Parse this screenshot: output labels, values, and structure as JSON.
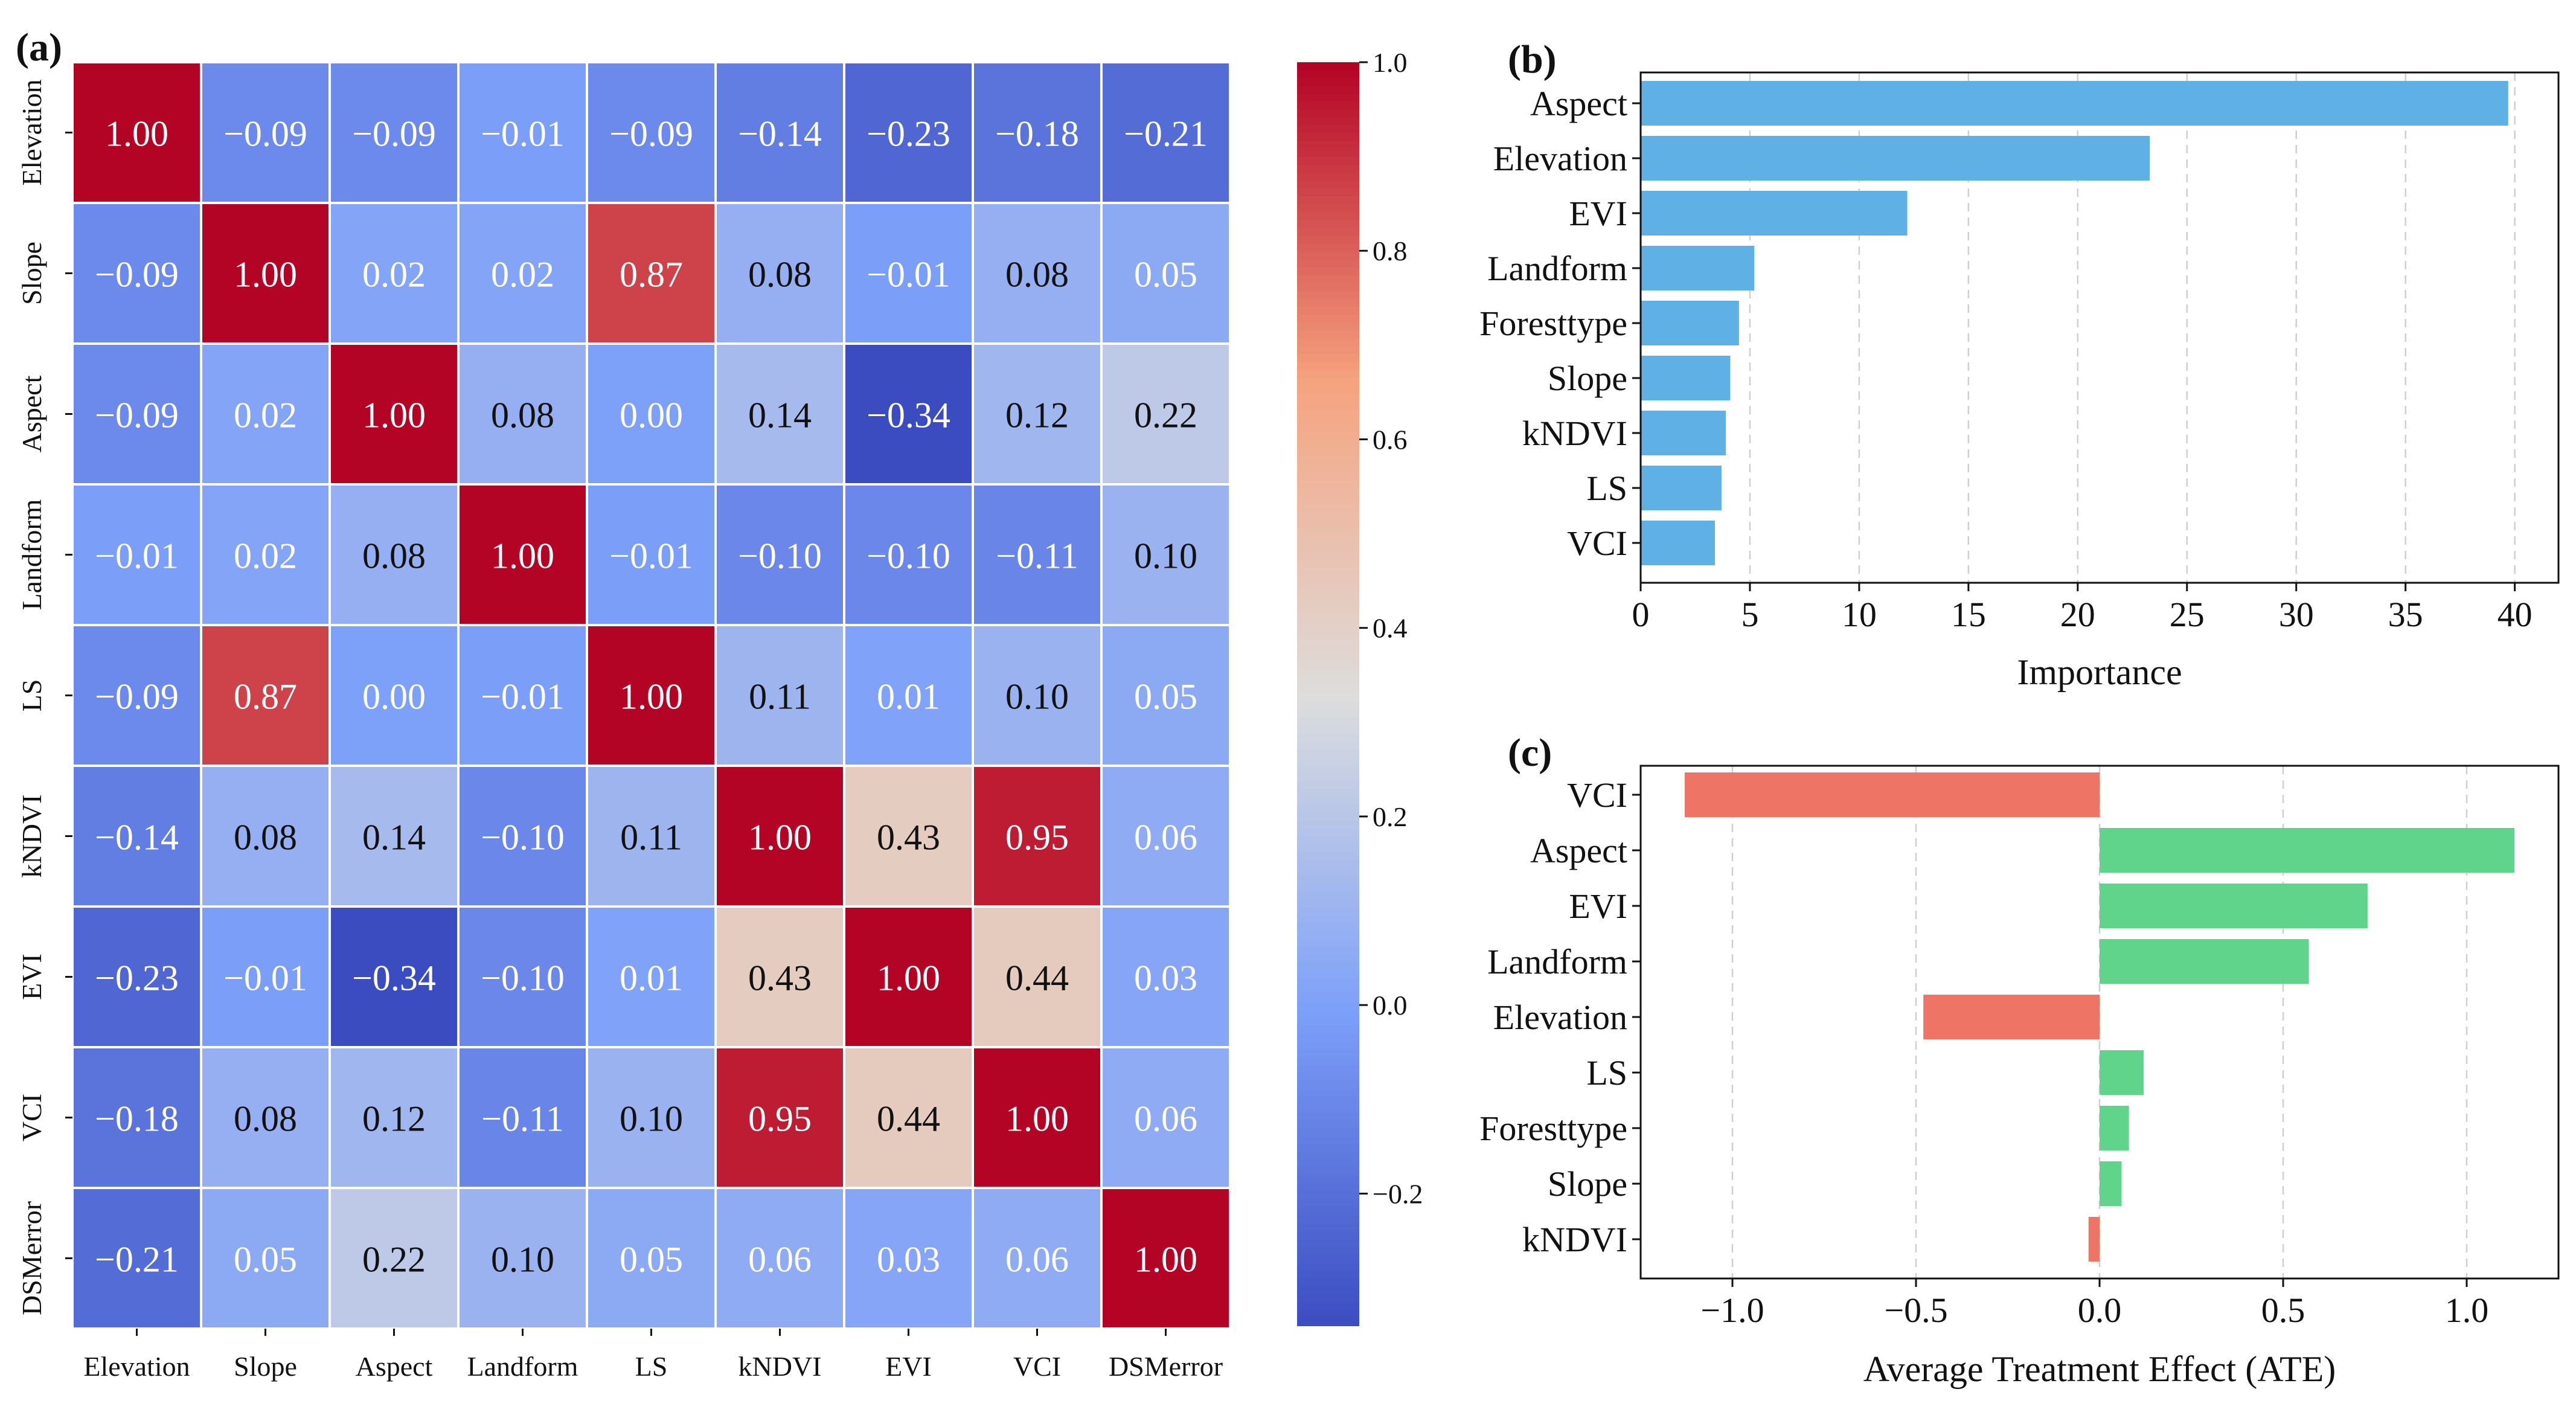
{
  "chart_data": [
    {
      "panel": "(a)",
      "type": "heatmap",
      "title": "",
      "variables": [
        "Elevation",
        "Slope",
        "Aspect",
        "Landform",
        "LS",
        "kNDVI",
        "EVI",
        "VCI",
        "DSMerror"
      ],
      "values": [
        [
          1.0,
          -0.09,
          -0.09,
          -0.01,
          -0.09,
          -0.14,
          -0.23,
          -0.18,
          -0.21
        ],
        [
          -0.09,
          1.0,
          0.02,
          0.02,
          0.87,
          0.08,
          -0.01,
          0.08,
          0.05
        ],
        [
          -0.09,
          0.02,
          1.0,
          0.08,
          0.0,
          0.14,
          -0.34,
          0.12,
          0.22
        ],
        [
          -0.01,
          0.02,
          0.08,
          1.0,
          -0.01,
          -0.1,
          -0.1,
          -0.11,
          0.1
        ],
        [
          -0.09,
          0.87,
          0.0,
          -0.01,
          1.0,
          0.11,
          0.01,
          0.1,
          0.05
        ],
        [
          -0.14,
          0.08,
          0.14,
          -0.1,
          0.11,
          1.0,
          0.43,
          0.95,
          0.06
        ],
        [
          -0.23,
          -0.01,
          -0.34,
          -0.1,
          0.01,
          0.43,
          1.0,
          0.44,
          0.03
        ],
        [
          -0.18,
          0.08,
          0.12,
          -0.11,
          0.1,
          0.95,
          0.44,
          1.0,
          0.06
        ],
        [
          -0.21,
          0.05,
          0.22,
          0.1,
          0.05,
          0.06,
          0.03,
          0.06,
          1.0
        ]
      ],
      "colormap": "coolwarm",
      "vmin": -0.34,
      "vmax": 1.0,
      "colorbar_ticks": [
        -0.2,
        0.0,
        0.2,
        0.4,
        0.6,
        0.8,
        1.0
      ],
      "colorbar_tick_labels": [
        "−0.2",
        "0.0",
        "0.2",
        "0.4",
        "0.6",
        "0.8",
        "1.0"
      ]
    },
    {
      "panel": "(b)",
      "type": "bar",
      "orientation": "horizontal",
      "categories": [
        "Aspect",
        "Elevation",
        "EVI",
        "Landform",
        "Foresttype",
        "Slope",
        "kNDVI",
        "LS",
        "VCI"
      ],
      "values": [
        39.7,
        23.3,
        12.2,
        5.2,
        4.5,
        4.1,
        3.9,
        3.7,
        3.4
      ],
      "xlabel": "Importance",
      "ylabel": "",
      "xlim": [
        0,
        42
      ],
      "xticks": [
        0,
        5,
        10,
        15,
        20,
        25,
        30,
        35,
        40
      ],
      "xtick_labels": [
        "0",
        "5",
        "10",
        "15",
        "20",
        "25",
        "30",
        "35",
        "40"
      ],
      "color": "#5fb0e5",
      "grid": "vertical dashed"
    },
    {
      "panel": "(c)",
      "type": "bar",
      "orientation": "horizontal",
      "categories": [
        "VCI",
        "Aspect",
        "EVI",
        "Landform",
        "Elevation",
        "LS",
        "Foresttype",
        "Slope",
        "kNDVI"
      ],
      "values": [
        -1.13,
        1.13,
        0.73,
        0.57,
        -0.48,
        0.12,
        0.08,
        0.06,
        -0.03
      ],
      "xlabel": "Average Treatment Effect (ATE)",
      "ylabel": "",
      "xlim": [
        -1.25,
        1.25
      ],
      "xticks": [
        -1.0,
        -0.5,
        0.0,
        0.5,
        1.0
      ],
      "xtick_labels": [
        "−1.0",
        "−0.5",
        "0.0",
        "0.5",
        "1.0"
      ],
      "positive_color": "#5fd48a",
      "negative_color": "#ee7566",
      "grid": "vertical dashed"
    }
  ]
}
